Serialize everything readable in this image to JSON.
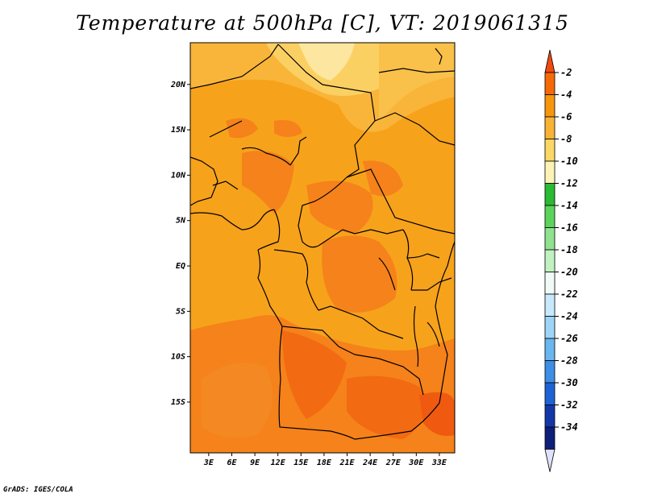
{
  "title": "Temperature at 500hPa [C], VT: 2019061315",
  "credit": "GrADS: IGES/COLA",
  "map": {
    "variable": "Temperature at 500hPa",
    "units": "C",
    "valid_time": "2019061315",
    "lat_ticks": [
      {
        "label": "20N",
        "value": 20
      },
      {
        "label": "15N",
        "value": 15
      },
      {
        "label": "10N",
        "value": 10
      },
      {
        "label": "5N",
        "value": 5
      },
      {
        "label": "EQ",
        "value": 0
      },
      {
        "label": "5S",
        "value": -5
      },
      {
        "label": "10S",
        "value": -10
      },
      {
        "label": "15S",
        "value": -15
      }
    ],
    "lon_ticks": [
      {
        "label": "3E",
        "value": 3
      },
      {
        "label": "6E",
        "value": 6
      },
      {
        "label": "9E",
        "value": 9
      },
      {
        "label": "12E",
        "value": 12
      },
      {
        "label": "15E",
        "value": 15
      },
      {
        "label": "18E",
        "value": 18
      },
      {
        "label": "21E",
        "value": 21
      },
      {
        "label": "24E",
        "value": 24
      },
      {
        "label": "27E",
        "value": 27
      },
      {
        "label": "30E",
        "value": 30
      },
      {
        "label": "33E",
        "value": 33
      }
    ]
  },
  "colorbar": {
    "labels": [
      "-2",
      "-4",
      "-6",
      "-8",
      "-10",
      "-12",
      "-14",
      "-16",
      "-18",
      "-20",
      "-22",
      "-24",
      "-26",
      "-28",
      "-30",
      "-32",
      "-34"
    ],
    "colors": [
      "#f04a10",
      "#f56a06",
      "#f7960c",
      "#f8b335",
      "#fbd766",
      "#fdf3b5",
      "#2aba33",
      "#5cd45c",
      "#8fe38f",
      "#c1f1c1",
      "#f0fbf8",
      "#c8e9fb",
      "#9dd4f7",
      "#6ab6f0",
      "#3d8fe6",
      "#1e63d6",
      "#1437a8",
      "#0d1f7a",
      "#e0e0ff"
    ]
  }
}
